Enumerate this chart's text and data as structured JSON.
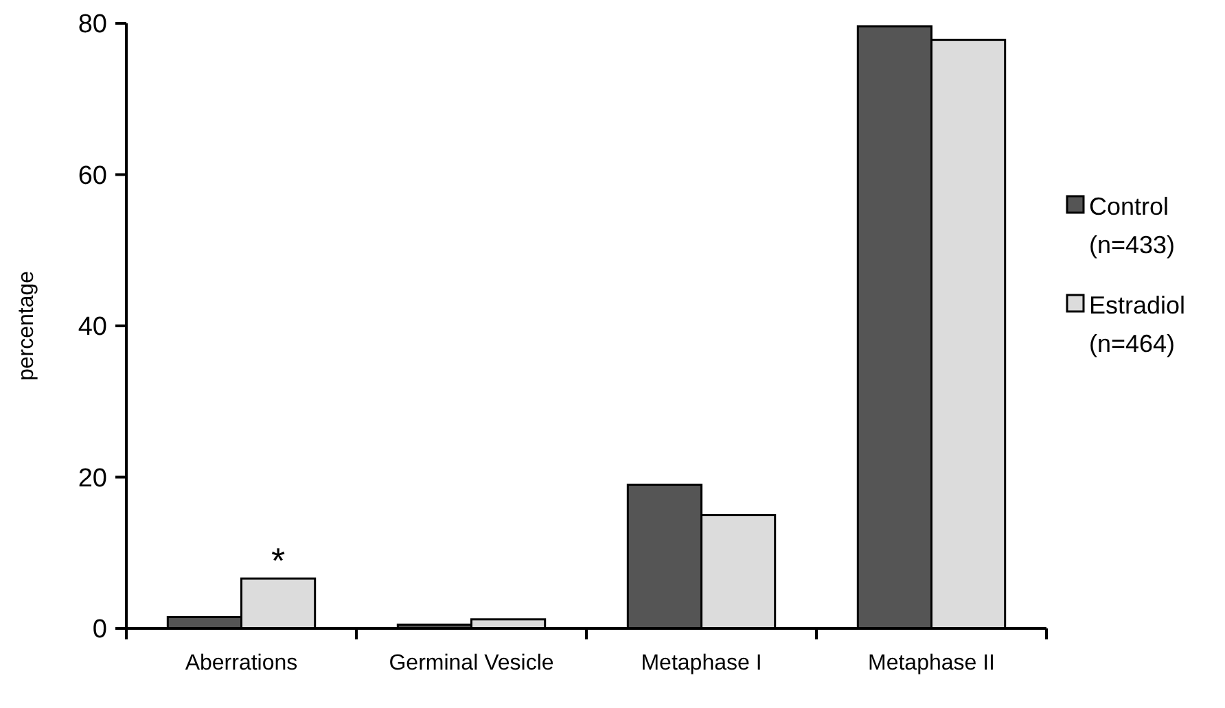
{
  "chart_data": {
    "type": "bar",
    "ylabel": "percentage",
    "categories": [
      "Aberrations",
      "Germinal Vesicle",
      "Metaphase I",
      "Metaphase II"
    ],
    "series": [
      {
        "name": "Control (n=433)",
        "color": "#555555",
        "values": [
          1.5,
          0.5,
          19,
          79.6
        ]
      },
      {
        "name": "Estradiol (n=464)",
        "color": "#dcdcdc",
        "values": [
          6.6,
          1.2,
          15,
          77.8
        ]
      }
    ],
    "ylim": [
      0,
      80
    ],
    "yticks": [
      0,
      20,
      40,
      60,
      80
    ],
    "grid": false,
    "legend": "right",
    "annotations": [
      {
        "text": "*",
        "x": "Aberrations",
        "y": 6.6
      }
    ]
  }
}
